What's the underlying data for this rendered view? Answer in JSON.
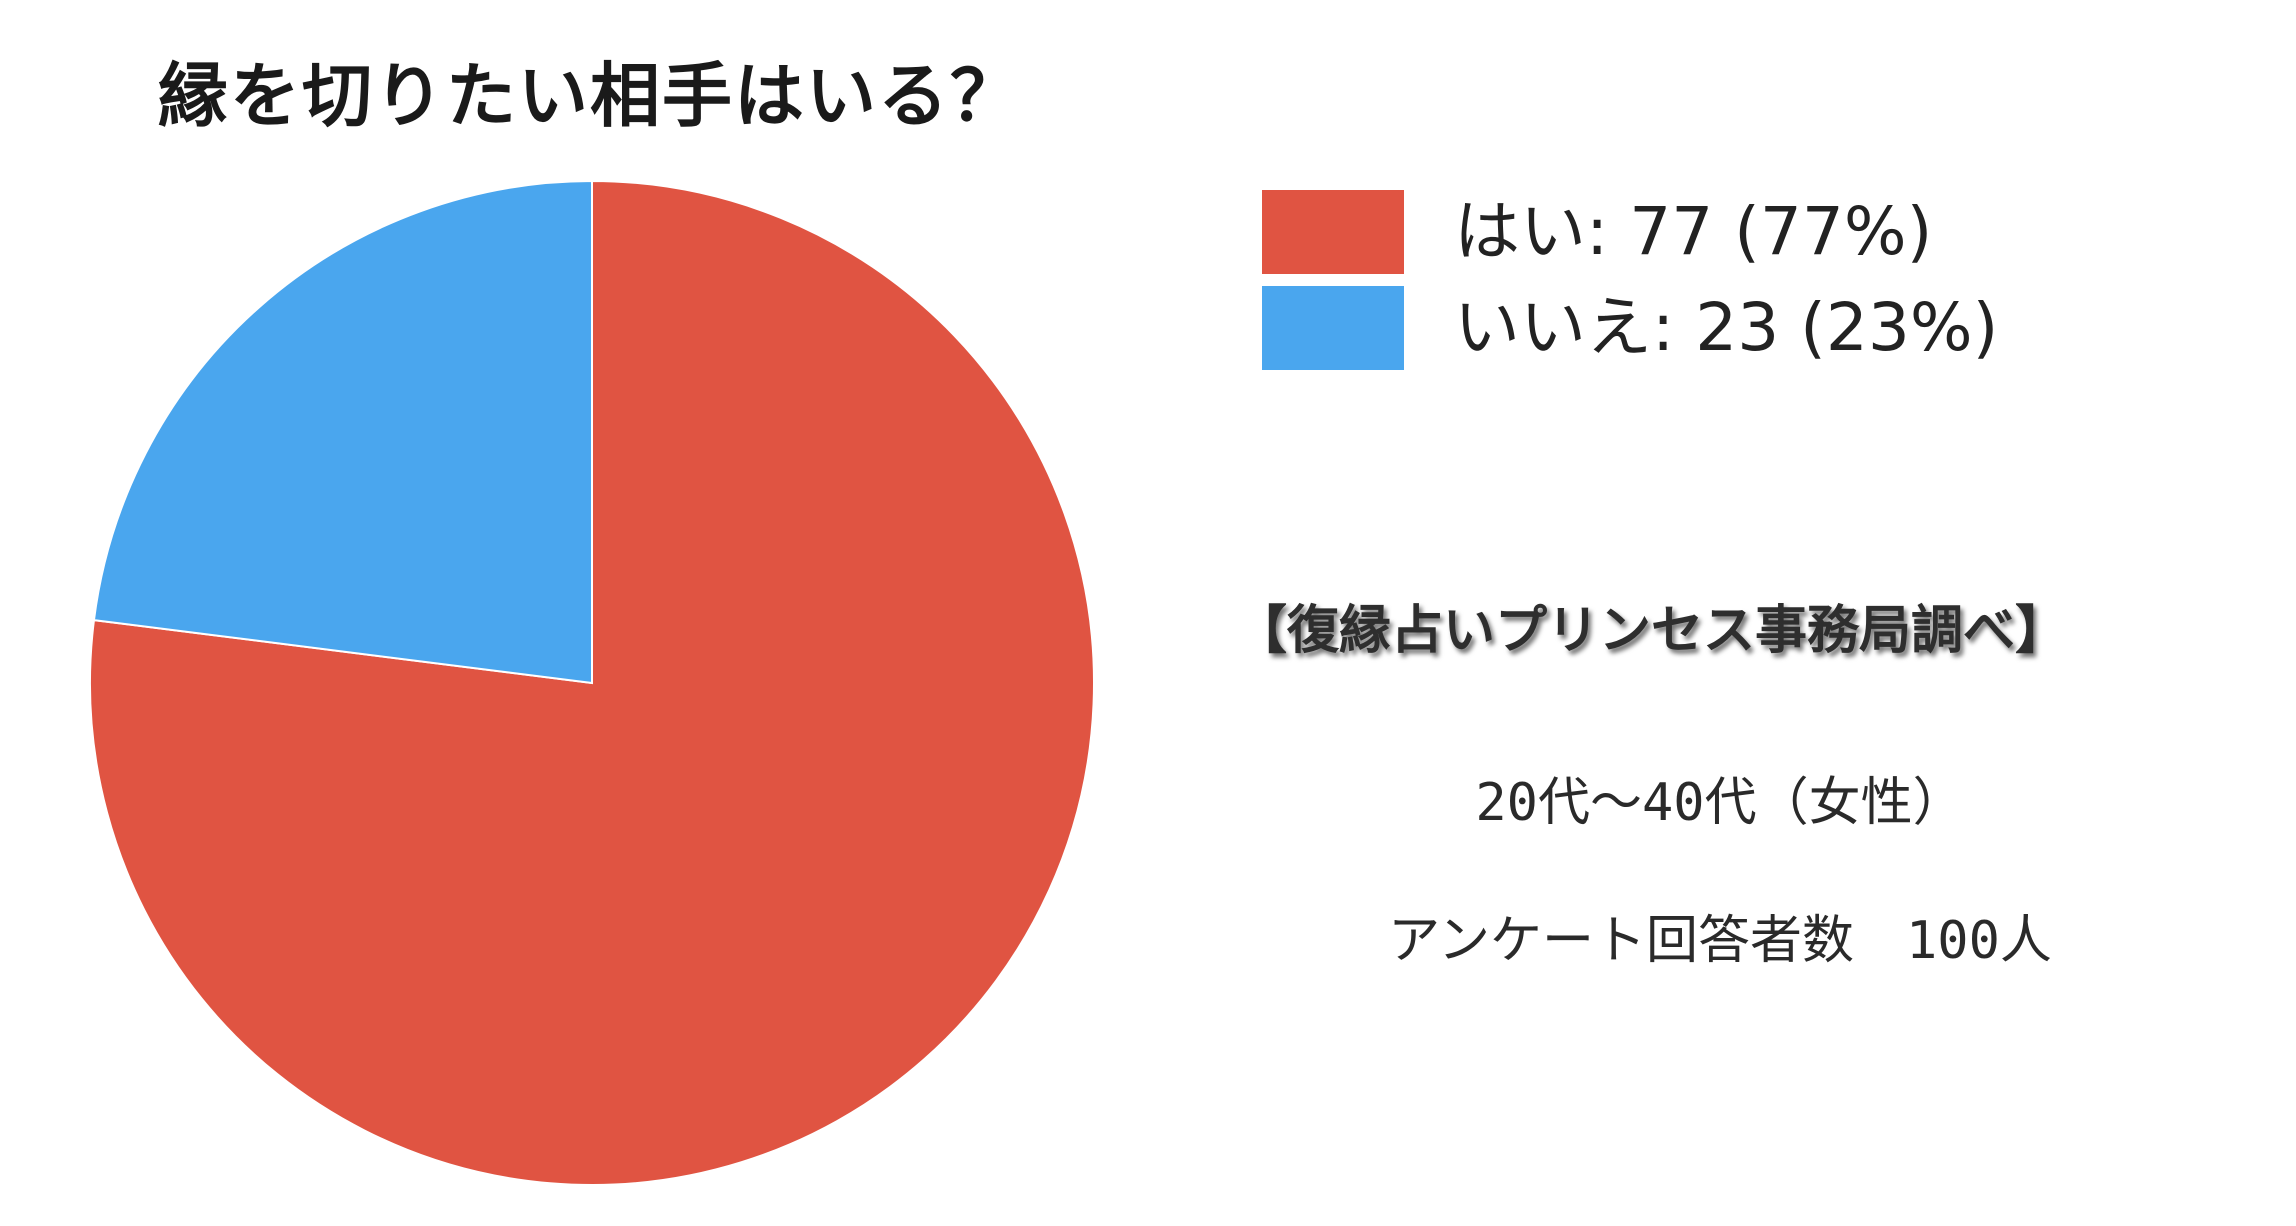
{
  "chart_data": {
    "type": "pie",
    "title": "縁を切りたい相手はいる？",
    "categories": [
      "はい",
      "いいえ"
    ],
    "values": [
      77,
      23
    ],
    "percentages": [
      "77%",
      "23%"
    ],
    "colors": [
      "#e05442",
      "#4aa6ee"
    ],
    "legend": [
      "はい: 77 (77%)",
      "いいえ: 23 (23%)"
    ],
    "legend_position": "right"
  },
  "notes": {
    "source": "【復縁占いプリンセス事務局調べ】",
    "demographic": "20代～40代（女性）",
    "respondents": "アンケート回答者数　100人"
  }
}
